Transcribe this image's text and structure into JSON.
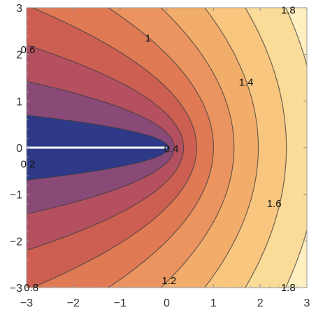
{
  "chart_data": {
    "type": "contour",
    "title": "",
    "xlabel": "",
    "ylabel": "",
    "xlim": [
      -3,
      3
    ],
    "ylim": [
      -3,
      3
    ],
    "x_ticks": [
      -3,
      -2,
      -1,
      0,
      1,
      2,
      3
    ],
    "y_ticks": [
      -3,
      -2,
      -1,
      0,
      1,
      2,
      3
    ],
    "x_tick_labels": [
      "−3",
      "−2",
      "−1",
      "0",
      "1",
      "2",
      "3"
    ],
    "y_tick_labels": [
      "−3",
      "−2",
      "−1",
      "0",
      "1",
      "2",
      "3"
    ],
    "levels": [
      0.2,
      0.4,
      0.6,
      0.8,
      1.0,
      1.2,
      1.4,
      1.6,
      1.8
    ],
    "grid": false,
    "branch_cut": {
      "from": [
        -3,
        0
      ],
      "to": [
        0,
        0
      ],
      "color": "#ffffff"
    },
    "palette": [
      "#2e3a87",
      "#8a4a78",
      "#b45060",
      "#cc5f52",
      "#df7a55",
      "#eb9460",
      "#f3ad6b",
      "#f8c67e",
      "#fbdb98",
      "#fdefc0"
    ],
    "contour_labels": [
      {
        "text": "0.2",
        "x": -2.97,
        "y": -0.35
      },
      {
        "text": "0.4",
        "x": 0.1,
        "y": -0.02
      },
      {
        "text": "0.6",
        "x": -2.97,
        "y": 2.1
      },
      {
        "text": "0.8",
        "x": -2.9,
        "y": -3.0
      },
      {
        "text": "1",
        "x": -0.4,
        "y": 2.35
      },
      {
        "text": "1.2",
        "x": 0.05,
        "y": -2.85
      },
      {
        "text": "1.4",
        "x": 1.7,
        "y": 1.4
      },
      {
        "text": "1.6",
        "x": 2.3,
        "y": -1.2
      },
      {
        "text": "1.8",
        "x": 2.6,
        "y": 2.95
      },
      {
        "text": "1.8",
        "x": 2.6,
        "y": -3.0
      }
    ]
  }
}
